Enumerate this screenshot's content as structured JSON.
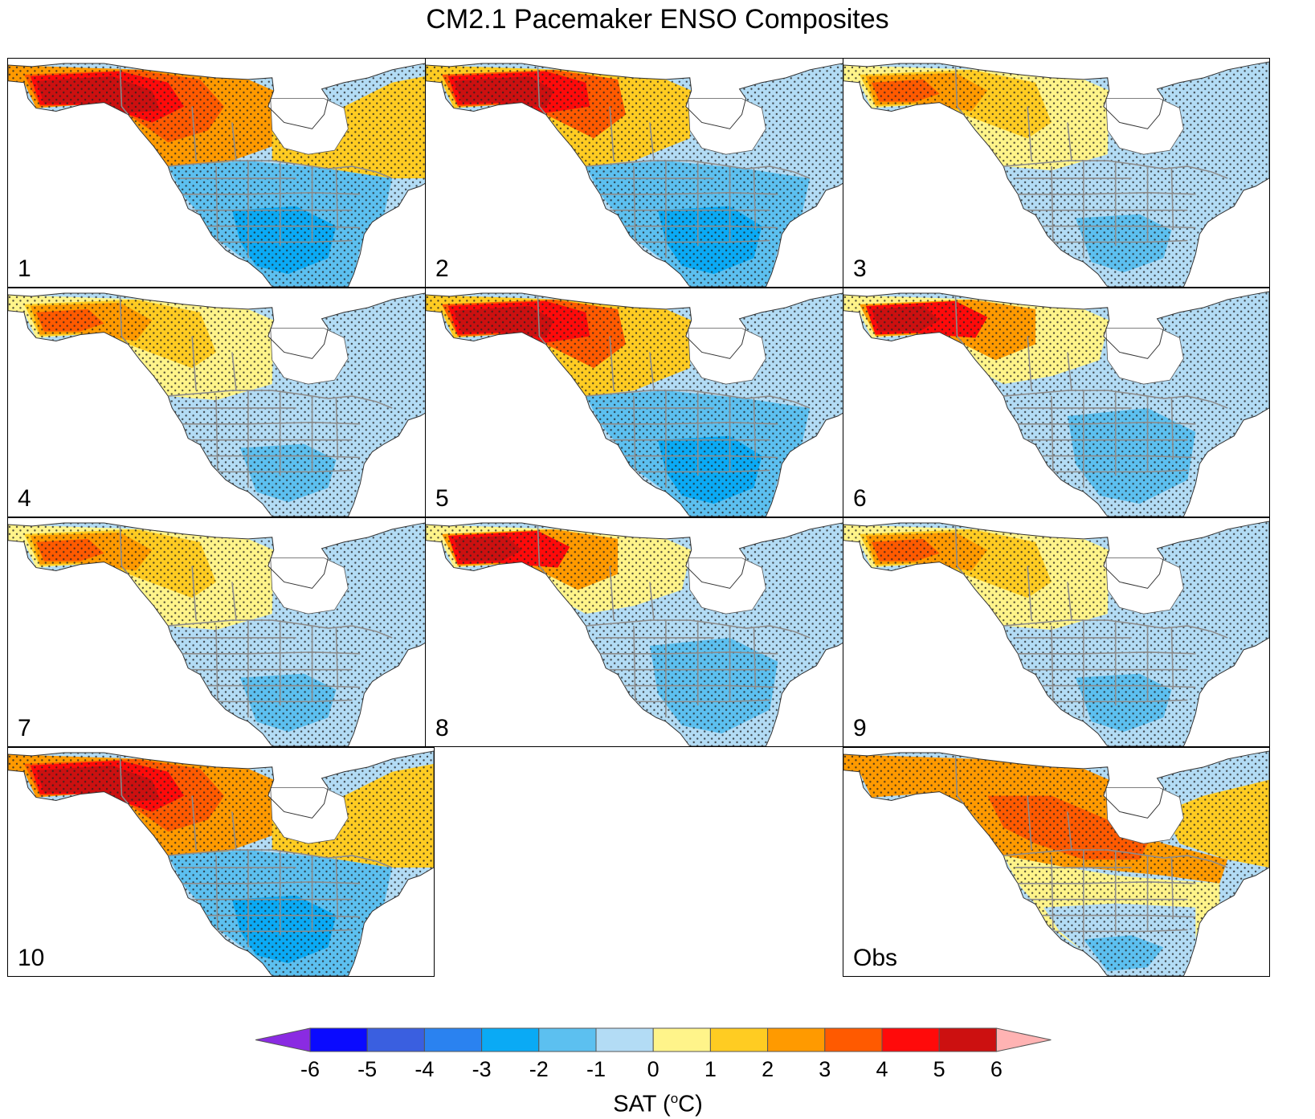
{
  "title": "CM2.1 Pacemaker ENSO Composites",
  "panels": [
    {
      "label": "1",
      "variant": "a"
    },
    {
      "label": "2",
      "variant": "b"
    },
    {
      "label": "3",
      "variant": "c"
    },
    {
      "label": "4",
      "variant": "c"
    },
    {
      "label": "5",
      "variant": "b"
    },
    {
      "label": "6",
      "variant": "d"
    },
    {
      "label": "7",
      "variant": "c"
    },
    {
      "label": "8",
      "variant": "d"
    },
    {
      "label": "9",
      "variant": "c"
    },
    {
      "label": "10",
      "variant": "a"
    },
    {
      "label": "Obs",
      "variant": "obs"
    }
  ],
  "colorbar": {
    "label_prefix": "SAT (",
    "label_sup": "o",
    "label_suffix": "C)",
    "ticks": [
      "-6",
      "-5",
      "-4",
      "-3",
      "-2",
      "-1",
      "0",
      "1",
      "2",
      "3",
      "4",
      "5",
      "6"
    ],
    "under_color": "#8a2be2",
    "over_color": "#ffb3b3",
    "colors": [
      "#0a0aff",
      "#3a5fe0",
      "#2a82f0",
      "#0aaaf5",
      "#5cc0f0",
      "#b3dcf5",
      "#fff48a",
      "#ffcc22",
      "#ff9a00",
      "#ff5a00",
      "#ff0a0a",
      "#cc1010"
    ]
  }
}
